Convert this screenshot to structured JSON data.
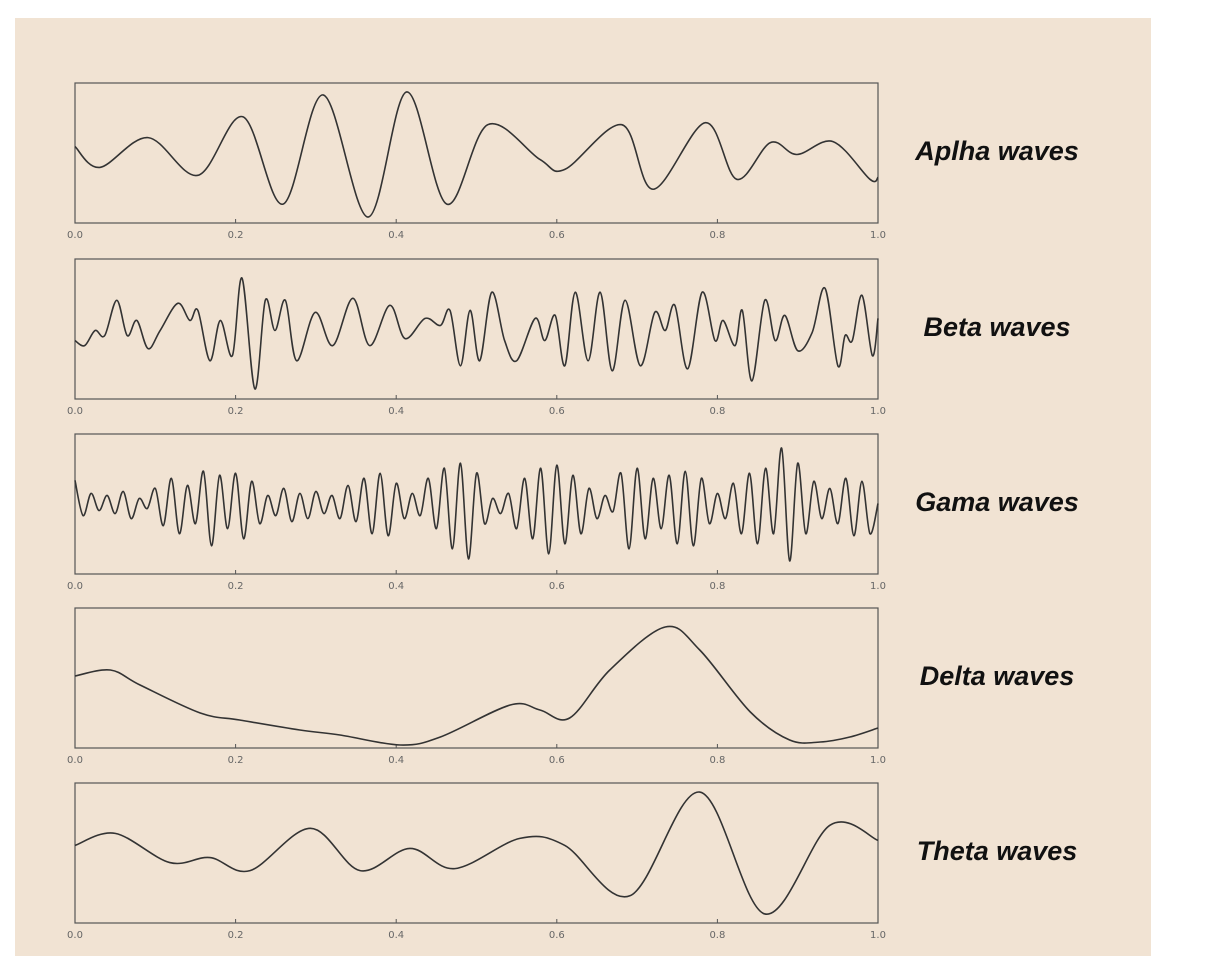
{
  "chart_data": [
    {
      "type": "line",
      "title": "Aplha waves",
      "color": "#333333",
      "x": [
        0,
        0.031,
        0.091,
        0.153,
        0.209,
        0.259,
        0.309,
        0.365,
        0.413,
        0.463,
        0.514,
        0.579,
        0.61,
        0.681,
        0.72,
        0.785,
        0.824,
        0.866,
        0.899,
        0.944,
        0.99,
        1
      ],
      "values": [
        77,
        56,
        86,
        48,
        107,
        19,
        129,
        6,
        132,
        19,
        99,
        64,
        54,
        99,
        34,
        101,
        44,
        81,
        69,
        82,
        44,
        46
      ],
      "xlim": [
        0,
        1
      ],
      "ylim": [
        0,
        141
      ],
      "xticks": [
        {
          "value": 0,
          "label": "0.0"
        },
        0.2,
        0.4,
        0.6,
        0.8,
        {
          "value": 1,
          "label": "1.0"
        }
      ]
    },
    {
      "type": "line",
      "title": "Beta waves",
      "color": "#333333",
      "x": [
        0,
        0.012,
        0.025,
        0.037,
        0.052,
        0.065,
        0.077,
        0.091,
        0.106,
        0.128,
        0.143,
        0.153,
        0.168,
        0.181,
        0.196,
        0.208,
        0.224,
        0.237,
        0.249,
        0.262,
        0.276,
        0.299,
        0.321,
        0.346,
        0.367,
        0.392,
        0.411,
        0.436,
        0.455,
        0.467,
        0.48,
        0.492,
        0.504,
        0.519,
        0.535,
        0.55,
        0.573,
        0.585,
        0.598,
        0.61,
        0.623,
        0.639,
        0.654,
        0.669,
        0.685,
        0.704,
        0.722,
        0.735,
        0.747,
        0.763,
        0.781,
        0.797,
        0.807,
        0.822,
        0.831,
        0.843,
        0.859,
        0.872,
        0.884,
        0.9,
        0.918,
        0.934,
        0.95,
        0.959,
        0.968,
        0.98,
        0.993,
        1
      ],
      "values": [
        58,
        53,
        68,
        63,
        98,
        63,
        78,
        50,
        68,
        95,
        78,
        88,
        38,
        78,
        43,
        120,
        10,
        98,
        68,
        98,
        38,
        86,
        53,
        100,
        53,
        93,
        60,
        80,
        73,
        88,
        33,
        88,
        38,
        106,
        58,
        38,
        80,
        58,
        83,
        33,
        106,
        38,
        106,
        28,
        98,
        33,
        86,
        68,
        93,
        30,
        106,
        58,
        78,
        53,
        88,
        18,
        98,
        58,
        83,
        48,
        66,
        110,
        33,
        63,
        58,
        103,
        43,
        80
      ],
      "xlim": [
        0,
        1
      ],
      "ylim": [
        0,
        139
      ],
      "xticks": [
        {
          "value": 0,
          "label": "0.0"
        },
        0.2,
        0.4,
        0.6,
        0.8,
        {
          "value": 1,
          "label": "1.0"
        }
      ]
    },
    {
      "type": "line",
      "title": "Gama waves",
      "color": "#333333",
      "x": [
        0,
        0.01,
        0.02,
        0.03,
        0.04,
        0.05,
        0.06,
        0.07,
        0.08,
        0.09,
        0.1,
        0.11,
        0.12,
        0.13,
        0.14,
        0.15,
        0.16,
        0.17,
        0.18,
        0.19,
        0.2,
        0.21,
        0.22,
        0.23,
        0.24,
        0.25,
        0.26,
        0.27,
        0.28,
        0.29,
        0.3,
        0.31,
        0.32,
        0.33,
        0.34,
        0.35,
        0.36,
        0.37,
        0.38,
        0.39,
        0.4,
        0.41,
        0.42,
        0.43,
        0.44,
        0.45,
        0.46,
        0.47,
        0.48,
        0.49,
        0.5,
        0.51,
        0.52,
        0.53,
        0.54,
        0.55,
        0.56,
        0.57,
        0.58,
        0.59,
        0.6,
        0.61,
        0.62,
        0.63,
        0.64,
        0.65,
        0.66,
        0.67,
        0.68,
        0.69,
        0.7,
        0.71,
        0.72,
        0.73,
        0.74,
        0.75,
        0.76,
        0.77,
        0.78,
        0.79,
        0.8,
        0.81,
        0.82,
        0.83,
        0.84,
        0.85,
        0.86,
        0.87,
        0.88,
        0.89,
        0.9,
        0.91,
        0.92,
        0.93,
        0.94,
        0.95,
        0.96,
        0.97,
        0.98,
        0.99,
        1
      ],
      "values": [
        93,
        58,
        80,
        63,
        78,
        60,
        82,
        55,
        75,
        65,
        85,
        48,
        95,
        40,
        88,
        50,
        102,
        28,
        98,
        45,
        100,
        35,
        92,
        50,
        78,
        58,
        85,
        52,
        80,
        55,
        82,
        60,
        78,
        55,
        88,
        52,
        95,
        40,
        100,
        38,
        90,
        55,
        80,
        58,
        95,
        45,
        105,
        25,
        110,
        15,
        100,
        50,
        75,
        60,
        80,
        45,
        95,
        35,
        105,
        20,
        108,
        30,
        98,
        40,
        85,
        55,
        78,
        62,
        100,
        25,
        105,
        35,
        95,
        45,
        98,
        30,
        102,
        28,
        95,
        50,
        80,
        55,
        90,
        40,
        100,
        30,
        105,
        40,
        125,
        13,
        110,
        40,
        92,
        55,
        85,
        50,
        95,
        38,
        92,
        40,
        70
      ],
      "xlim": [
        0,
        1
      ],
      "ylim": [
        0,
        139
      ],
      "xticks": [
        {
          "value": 0,
          "label": "0.0"
        },
        0.2,
        0.4,
        0.6,
        0.8,
        {
          "value": 1,
          "label": "1.0"
        }
      ]
    },
    {
      "type": "line",
      "title": "Delta waves",
      "color": "#333333",
      "x": [
        0,
        0.044,
        0.081,
        0.156,
        0.205,
        0.28,
        0.33,
        0.405,
        0.455,
        0.542,
        0.579,
        0.616,
        0.666,
        0.735,
        0.778,
        0.841,
        0.89,
        0.928,
        0.965,
        1
      ],
      "values": [
        72,
        78,
        63,
        35,
        28,
        18,
        13,
        3,
        11,
        43,
        38,
        30,
        78,
        121,
        98,
        36,
        8,
        6,
        11,
        20
      ],
      "xlim": [
        0,
        1
      ],
      "ylim": [
        0,
        140
      ],
      "xticks": [
        {
          "value": 0,
          "label": "0.0"
        },
        0.2,
        0.4,
        0.6,
        0.8,
        {
          "value": 1,
          "label": "1.0"
        }
      ]
    },
    {
      "type": "line",
      "title": "Theta waves",
      "color": "#333333",
      "x": [
        0,
        0.05,
        0.118,
        0.168,
        0.218,
        0.293,
        0.355,
        0.417,
        0.473,
        0.554,
        0.61,
        0.691,
        0.778,
        0.859,
        0.94,
        1
      ],
      "values": [
        77,
        89,
        60,
        65,
        52,
        94,
        52,
        74,
        54,
        84,
        77,
        27,
        130,
        9,
        97,
        82
      ],
      "xlim": [
        0,
        1
      ],
      "ylim": [
        0,
        139
      ],
      "xticks": [
        {
          "value": 0,
          "label": "0.0"
        },
        0.2,
        0.4,
        0.6,
        0.8,
        {
          "value": 1,
          "label": "1.0"
        }
      ]
    }
  ]
}
